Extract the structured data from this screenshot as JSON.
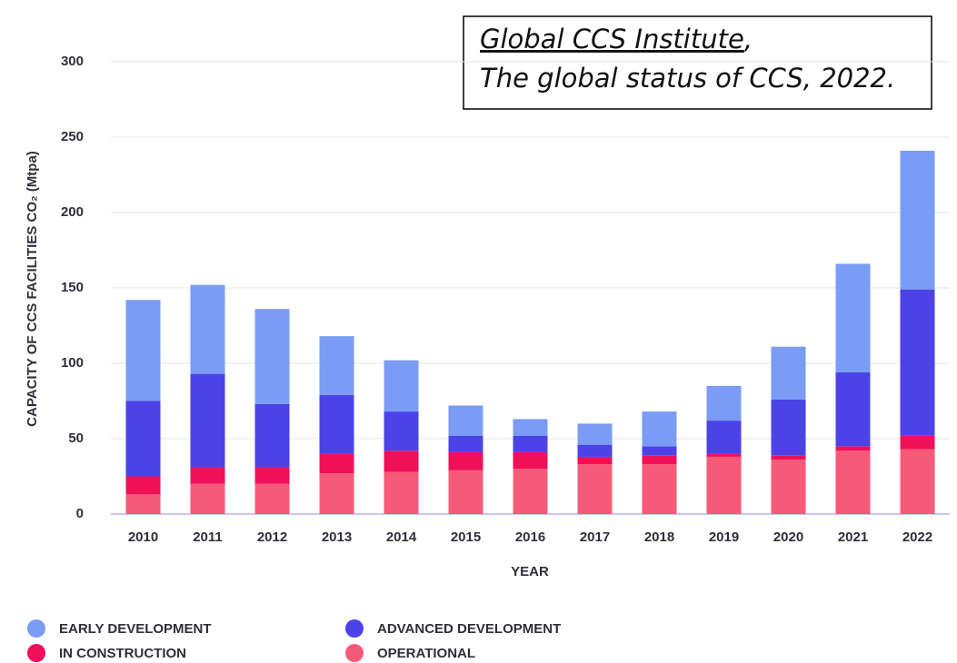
{
  "chart_data": {
    "type": "stacked_bar",
    "annotation": [
      "Global CCS Institute",
      ",",
      "The global status of CCS, 2022."
    ],
    "ylabel": "CAPACITY OF CCS FACILITIES CO₂ (Mtpa)",
    "xlabel": "YEAR",
    "categories": [
      "2010",
      "2011",
      "2012",
      "2013",
      "2014",
      "2015",
      "2016",
      "2017",
      "2018",
      "2019",
      "2020",
      "2021",
      "2022"
    ],
    "series": [
      {
        "name": "EARLY DEVELOPMENT",
        "color": "#7b9cf4",
        "values": [
          67,
          59,
          63,
          39,
          34,
          20,
          11,
          14,
          23,
          23,
          35,
          72,
          92
        ]
      },
      {
        "name": "ADVANCED DEVELOPMENT",
        "color": "#4b43e8",
        "values": [
          50,
          62,
          42,
          39,
          26,
          11,
          11,
          8,
          6,
          22,
          37,
          49,
          97
        ]
      },
      {
        "name": "IN CONSTRUCTION",
        "color": "#f0105a",
        "values": [
          12,
          11,
          11,
          13,
          14,
          12,
          11,
          5,
          6,
          2,
          3,
          3,
          9
        ]
      },
      {
        "name": "OPERATIONAL",
        "color": "#f75a78",
        "values": [
          13,
          20,
          20,
          27,
          28,
          29,
          30,
          33,
          33,
          38,
          36,
          42,
          43
        ]
      }
    ],
    "ylim": [
      0,
      300
    ],
    "yticks": [
      0,
      50,
      100,
      150,
      200,
      250,
      300
    ],
    "grid": true
  }
}
